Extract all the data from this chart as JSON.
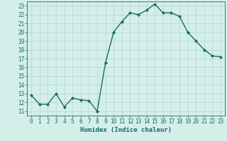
{
  "x": [
    0,
    1,
    2,
    3,
    4,
    5,
    6,
    7,
    8,
    9,
    10,
    11,
    12,
    13,
    14,
    15,
    16,
    17,
    18,
    19,
    20,
    21,
    22,
    23
  ],
  "y": [
    12.8,
    11.8,
    11.8,
    13.0,
    11.5,
    12.5,
    12.3,
    12.2,
    11.0,
    16.5,
    20.0,
    21.2,
    22.2,
    22.0,
    22.5,
    23.2,
    22.2,
    22.2,
    21.8,
    20.0,
    19.0,
    18.0,
    17.3,
    17.2
  ],
  "line_color": "#1a6b5a",
  "marker": "D",
  "marker_size": 2,
  "bg_color": "#d4eeea",
  "grid_color": "#b0d8d2",
  "xlabel": "Humidex (Indice chaleur)",
  "xlim": [
    -0.5,
    23.5
  ],
  "ylim": [
    10.5,
    23.5
  ],
  "yticks": [
    11,
    12,
    13,
    14,
    15,
    16,
    17,
    18,
    19,
    20,
    21,
    22,
    23
  ],
  "xticks": [
    0,
    1,
    2,
    3,
    4,
    5,
    6,
    7,
    8,
    9,
    10,
    11,
    12,
    13,
    14,
    15,
    16,
    17,
    18,
    19,
    20,
    21,
    22,
    23
  ],
  "tick_fontsize": 5.5,
  "xlabel_fontsize": 6.5,
  "axis_color": "#1a6b5a",
  "tick_color": "#1a6b5a",
  "linewidth": 1.0
}
